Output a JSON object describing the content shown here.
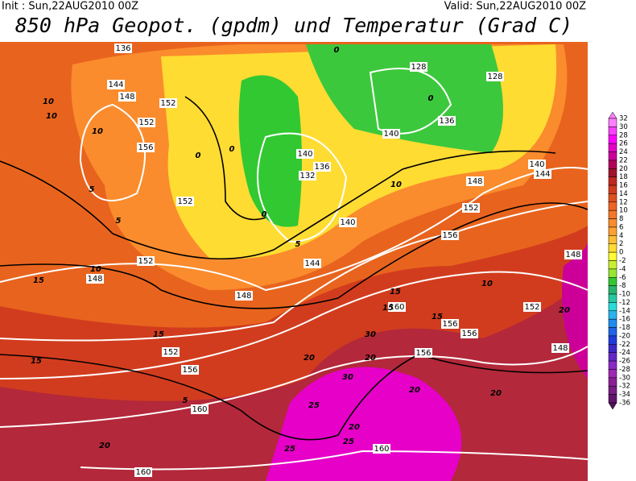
{
  "header": {
    "init": "Init : Sun,22AUG2010 00Z",
    "valid": "Valid: Sun,22AUG2010 00Z",
    "title": "850 hPa Geopot. (gpdm) und Temperatur (Grad C)"
  },
  "map": {
    "geopotential_labels": [
      136,
      144,
      148,
      152,
      152,
      156,
      152,
      148,
      152,
      148,
      140,
      132,
      136,
      140,
      128,
      128,
      136,
      144,
      140,
      148,
      152,
      156,
      144,
      140,
      148,
      156,
      160,
      156,
      152,
      156,
      160,
      160,
      160,
      148,
      152,
      156
    ],
    "temperature_labels": [
      10,
      10,
      10,
      5,
      5,
      10,
      15,
      15,
      15,
      0,
      0,
      0,
      5,
      10,
      15,
      15,
      20,
      20,
      25,
      20,
      20,
      25,
      25,
      30,
      30,
      20,
      20,
      15,
      20,
      10,
      0,
      0,
      5
    ]
  },
  "colorbar": {
    "ticks": [
      32,
      30,
      28,
      26,
      24,
      22,
      20,
      18,
      16,
      14,
      12,
      10,
      8,
      6,
      4,
      2,
      0,
      -2,
      -4,
      -6,
      -8,
      -10,
      -12,
      -14,
      -16,
      -18,
      -20,
      -22,
      -24,
      -26,
      -28,
      -30,
      -32,
      -34,
      -36
    ],
    "colors": [
      "#ff80ff",
      "#ff40ff",
      "#ff00ff",
      "#e600c8",
      "#cc0099",
      "#b3005a",
      "#a0142d",
      "#c02820",
      "#d23c1e",
      "#e0501e",
      "#f06423",
      "#f57828",
      "#fa8c2d",
      "#ffa032",
      "#ffbe32",
      "#ffdc32",
      "#ffff32",
      "#c8f032",
      "#96e632",
      "#32c832",
      "#28b46e",
      "#28c8a0",
      "#28dcdc",
      "#28b4f0",
      "#1e8cf0",
      "#1e64e6",
      "#1e3cdc",
      "#3c28c8",
      "#6428c8",
      "#8c28c8",
      "#a028b4",
      "#8c1e96",
      "#781e82",
      "#64146e",
      "#50145a"
    ]
  }
}
